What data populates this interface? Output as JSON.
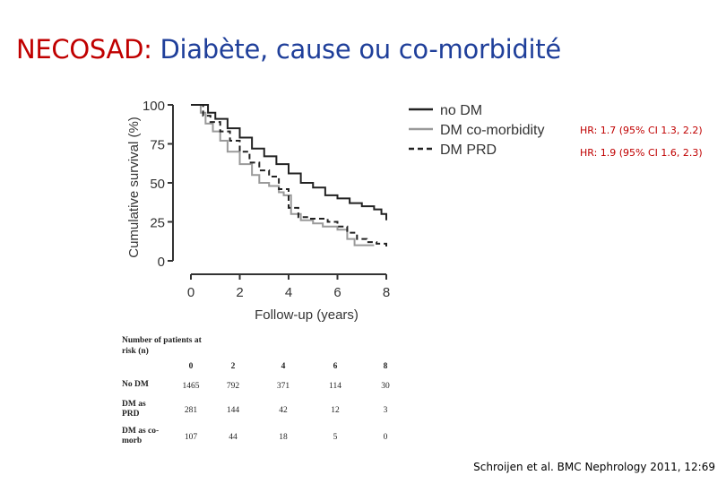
{
  "header": {
    "title_part1": "NECOSAD:",
    "title_part2": " Diabète, cause ou co-morbidité"
  },
  "hazard_ratios": [
    "HR: 1.7 (95% CI 1.3, 2.2)",
    "HR: 1.9 (95% CI 1.6, 2.3)"
  ],
  "colors": {
    "title_accent": "#c00000",
    "title_main": "#1f3f9a",
    "no_dm": "#222222",
    "dm_comorbidity": "#9a9a9a",
    "dm_prd": "#222222"
  },
  "chart_data": {
    "type": "line",
    "xlabel": "Follow-up (years)",
    "ylabel": "Cumulative survival (%)",
    "xlim": [
      0,
      8
    ],
    "ylim": [
      0,
      100
    ],
    "xticks": [
      0,
      2,
      4,
      6,
      8
    ],
    "yticks": [
      0,
      25,
      50,
      75,
      100
    ],
    "legend_position": "top-right",
    "series": [
      {
        "name": "no DM",
        "style": "solid",
        "x": [
          0,
          0.3,
          0.7,
          1.0,
          1.5,
          2.0,
          2.5,
          3.0,
          3.5,
          4.0,
          4.5,
          5.0,
          5.5,
          6.0,
          6.5,
          7.0,
          7.5,
          7.8,
          8.0
        ],
        "y": [
          100,
          100,
          95,
          91,
          85,
          79,
          72,
          67,
          62,
          56,
          50,
          47,
          42,
          40,
          37,
          35,
          33,
          30,
          26
        ]
      },
      {
        "name": "DM co-morbidity",
        "style": "solid",
        "x": [
          0,
          0.4,
          0.6,
          0.9,
          1.2,
          1.5,
          2.0,
          2.5,
          2.8,
          3.2,
          3.6,
          3.8,
          4.1,
          4.5,
          4.8,
          5.0,
          5.4,
          6.0,
          6.4,
          6.7,
          7.0,
          7.5
        ],
        "y": [
          100,
          95,
          88,
          83,
          77,
          70,
          62,
          55,
          50,
          48,
          44,
          42,
          30,
          26,
          26,
          24,
          22,
          20,
          14,
          10,
          10,
          10
        ]
      },
      {
        "name": "DM PRD",
        "style": "dashed",
        "x": [
          0,
          0.5,
          0.8,
          1.2,
          1.6,
          2.0,
          2.4,
          2.8,
          3.2,
          3.6,
          4.0,
          4.4,
          4.8,
          5.2,
          5.6,
          6.0,
          6.4,
          6.8,
          7.2,
          7.6,
          8.0
        ],
        "y": [
          100,
          93,
          89,
          83,
          77,
          70,
          63,
          58,
          54,
          46,
          34,
          28,
          27,
          27,
          25,
          22,
          18,
          14,
          12,
          11,
          9
        ]
      }
    ]
  },
  "risk_table": {
    "title": "Number of patients at risk (n)",
    "years": [
      "0",
      "2",
      "4",
      "6",
      "8"
    ],
    "rows": [
      {
        "label": "No DM",
        "values": [
          "1465",
          "792",
          "371",
          "114",
          "30"
        ]
      },
      {
        "label": "DM as PRD",
        "values": [
          "281",
          "144",
          "42",
          "12",
          "3"
        ]
      },
      {
        "label": "DM as co-morb",
        "values": [
          "107",
          "44",
          "18",
          "5",
          "0"
        ]
      }
    ]
  },
  "citation": "Schroijen et al. BMC Nephrology 2011, 12:69"
}
